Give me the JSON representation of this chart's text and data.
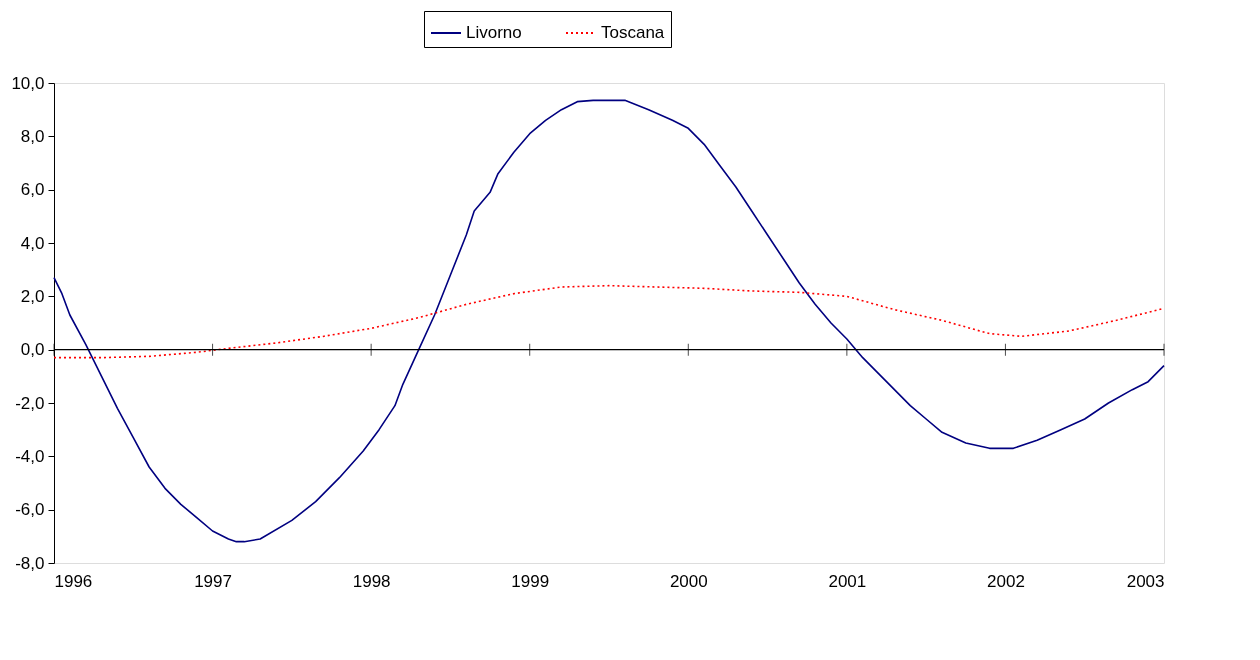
{
  "chart_data": {
    "type": "line",
    "x": [
      1996.0,
      1996.05,
      1996.1,
      1996.2,
      1996.3,
      1996.4,
      1996.5,
      1996.6,
      1996.7,
      1996.8,
      1996.9,
      1997.0,
      1997.1,
      1997.15,
      1997.2,
      1997.3,
      1997.5,
      1997.65,
      1997.8,
      1997.95,
      1998.05,
      1998.15,
      1998.2,
      1998.3,
      1998.4,
      1998.5,
      1998.6,
      1998.65,
      1998.75,
      1998.8,
      1998.9,
      1999.0,
      1999.1,
      1999.2,
      1999.3,
      1999.4,
      1999.5,
      1999.6,
      1999.75,
      1999.9,
      2000.0,
      2000.1,
      2000.2,
      2000.3,
      2000.4,
      2000.5,
      2000.6,
      2000.7,
      2000.8,
      2000.9,
      2001.0,
      2001.1,
      2001.2,
      2001.3,
      2001.4,
      2001.5,
      2001.6,
      2001.75,
      2001.9,
      2002.05,
      2002.2,
      2002.35,
      2002.5,
      2002.65,
      2002.8,
      2002.9,
      2003.0
    ],
    "series": [
      {
        "name": "Livorno",
        "color": "#000080",
        "line_style": "solid",
        "values": [
          2.7,
          2.1,
          1.3,
          0.2,
          -1.0,
          -2.2,
          -3.3,
          -4.4,
          -5.2,
          -5.8,
          -6.3,
          -6.8,
          -7.1,
          -7.2,
          -7.2,
          -7.1,
          -6.4,
          -5.7,
          -4.8,
          -3.8,
          -3.0,
          -2.1,
          -1.3,
          0.0,
          1.3,
          2.8,
          4.3,
          5.2,
          5.9,
          6.6,
          7.4,
          8.1,
          8.6,
          9.0,
          9.3,
          9.35,
          9.35,
          9.35,
          9.0,
          8.6,
          8.3,
          7.7,
          6.9,
          6.1,
          5.2,
          4.3,
          3.4,
          2.5,
          1.7,
          1.0,
          0.4,
          -0.3,
          -0.9,
          -1.5,
          -2.1,
          -2.6,
          -3.1,
          -3.5,
          -3.7,
          -3.7,
          -3.4,
          -3.0,
          -2.6,
          -2.0,
          -1.5,
          -1.2,
          -0.6
        ]
      },
      {
        "name": "Toscana",
        "color": "#ff0000",
        "line_style": "dotted",
        "x": [
          1996.0,
          1996.3,
          1996.6,
          1996.9,
          1997.1,
          1997.4,
          1997.7,
          1998.0,
          1998.3,
          1998.6,
          1998.9,
          1999.2,
          1999.5,
          1999.8,
          2000.1,
          2000.4,
          2000.7,
          2001.0,
          2001.3,
          2001.6,
          2001.9,
          2002.1,
          2002.4,
          2002.7,
          2003.0
        ],
        "values": [
          -0.3,
          -0.3,
          -0.25,
          -0.1,
          0.05,
          0.25,
          0.5,
          0.8,
          1.2,
          1.7,
          2.1,
          2.35,
          2.4,
          2.35,
          2.3,
          2.2,
          2.15,
          2.0,
          1.5,
          1.1,
          0.6,
          0.5,
          0.7,
          1.1,
          1.55
        ]
      }
    ],
    "xlim": [
      1996,
      2003
    ],
    "xticks": [
      1996,
      1997,
      1998,
      1999,
      2000,
      2001,
      2002,
      2003
    ],
    "ylim": [
      -8,
      10
    ],
    "yticks": [
      {
        "value": -8,
        "label": "-8,0"
      },
      {
        "value": -6,
        "label": "-6,0"
      },
      {
        "value": -4,
        "label": "-4,0"
      },
      {
        "value": -2,
        "label": "-2,0"
      },
      {
        "value": 0,
        "label": "0,0"
      },
      {
        "value": 2,
        "label": "2,0"
      },
      {
        "value": 4,
        "label": "4,0"
      },
      {
        "value": 6,
        "label": "6,0"
      },
      {
        "value": 8,
        "label": "8,0"
      },
      {
        "value": 10,
        "label": "10,0"
      }
    ],
    "ref_lines": [
      {
        "axis": "y",
        "value": 0,
        "color": "#000000"
      }
    ],
    "grid": false,
    "legend": "top",
    "marker": "none"
  }
}
